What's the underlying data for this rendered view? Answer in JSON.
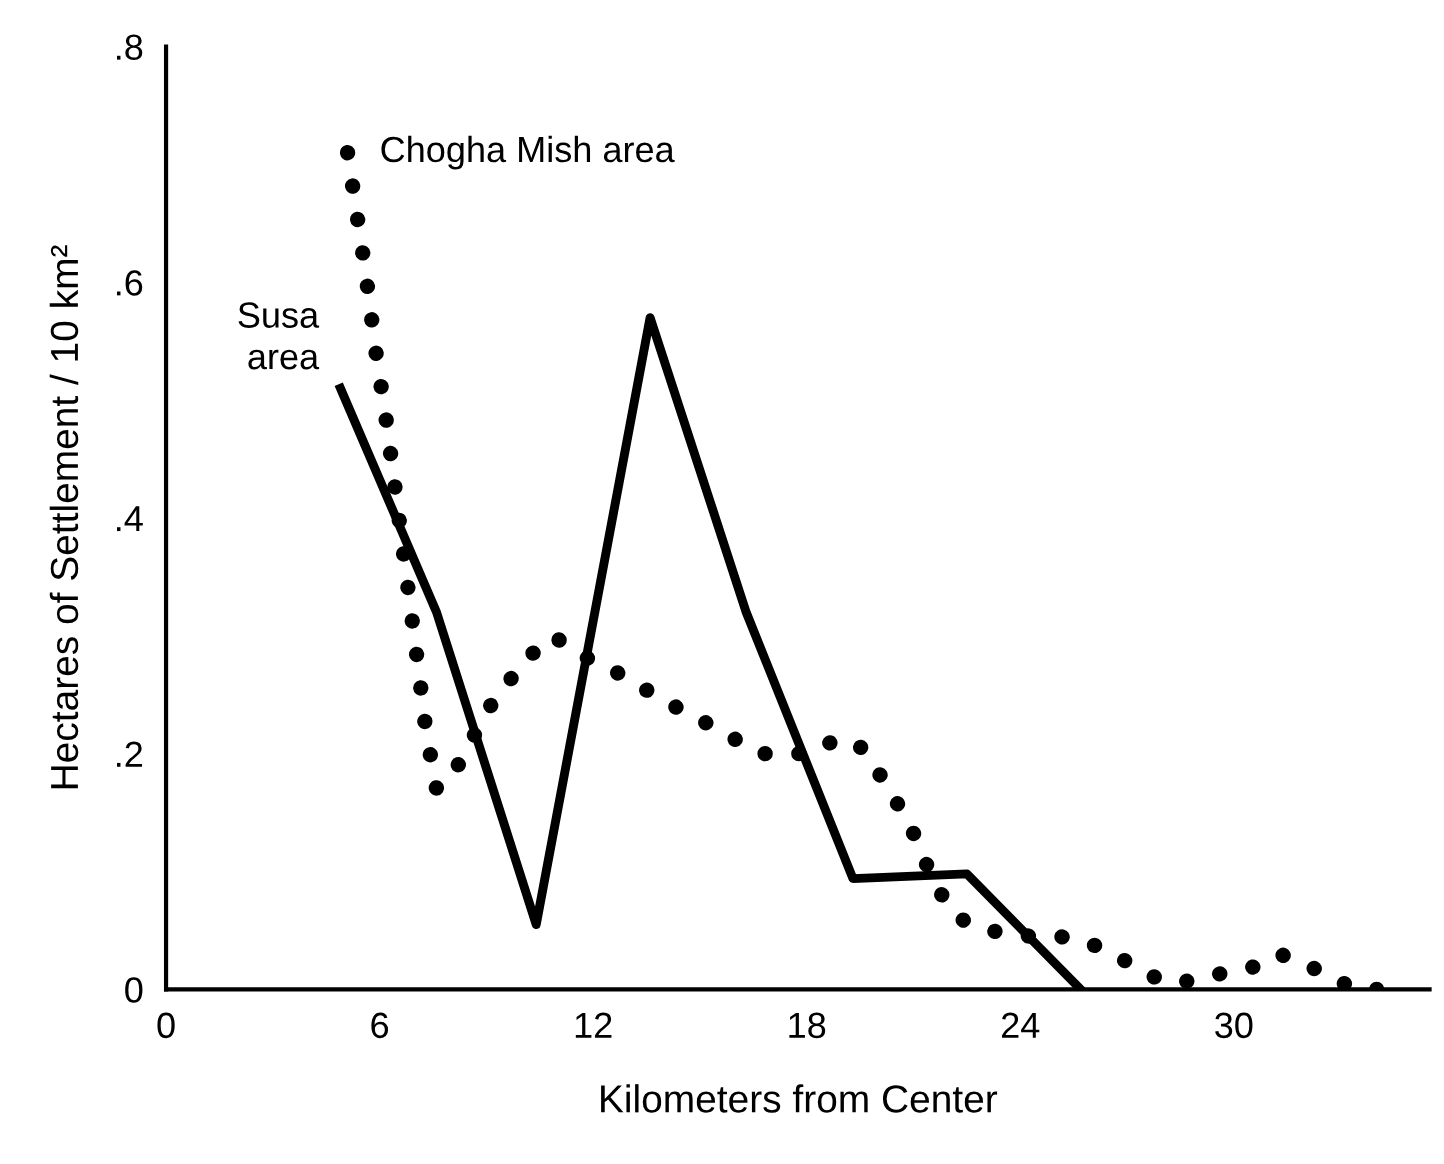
{
  "chart_data": {
    "type": "line",
    "xlabel": "Kilometers from Center",
    "ylabel": "Hectares of Settlement / 10 km²",
    "xlim": [
      0,
      35.5
    ],
    "ylim": [
      0,
      0.8
    ],
    "xticks": [
      0,
      6,
      12,
      18,
      24,
      30
    ],
    "yticks": [
      0,
      {
        "value": 0.2,
        "label": ".2"
      },
      {
        "value": 0.4,
        "label": ".4"
      },
      {
        "value": 0.6,
        "label": ".6"
      },
      {
        "value": 0.8,
        "label": ".8"
      }
    ],
    "grid": false,
    "legend": false,
    "marker": "none",
    "series": [
      {
        "name": "Chogha Mish area",
        "color": "#000000",
        "line_style": "dotted",
        "x": [
          5.1,
          5.4,
          5.6,
          5.9,
          6.2,
          6.5,
          6.8,
          7.1,
          7.3,
          7.6,
          8.2,
          9.1,
          9.6,
          10.1,
          10.5,
          10.9,
          11.3,
          11.9,
          12.6,
          13.2,
          13.7,
          14.3,
          14.9,
          15.6,
          16.1,
          16.7,
          17.4,
          18.1,
          18.7,
          19.4,
          19.9,
          20.5,
          20.9,
          21.3,
          21.8,
          22.3,
          23.1,
          24.3,
          25.1,
          25.9,
          26.6,
          27.2,
          27.8,
          28.4,
          29.1,
          29.9,
          30.7,
          31.3,
          32.1,
          32.8,
          33.4,
          34.0,
          34.5
        ],
        "values": [
          0.71,
          0.65,
          0.61,
          0.54,
          0.48,
          0.41,
          0.34,
          0.27,
          0.22,
          0.17,
          0.19,
          0.24,
          0.26,
          0.28,
          0.29,
          0.3,
          0.29,
          0.28,
          0.27,
          0.26,
          0.25,
          0.24,
          0.23,
          0.22,
          0.21,
          0.2,
          0.2,
          0.2,
          0.21,
          0.21,
          0.19,
          0.16,
          0.14,
          0.11,
          0.08,
          0.06,
          0.05,
          0.045,
          0.045,
          0.04,
          0.03,
          0.02,
          0.01,
          0.005,
          0.01,
          0.015,
          0.02,
          0.03,
          0.02,
          0.01,
          0.0,
          0.0,
          0.0
        ]
      },
      {
        "name": "Susa area",
        "color": "#000000",
        "line_style": "solid",
        "x": [
          4.9,
          7.6,
          10.4,
          13.6,
          16.3,
          19.3,
          22.5,
          25.7
        ],
        "values": [
          0.51,
          0.32,
          0.055,
          0.57,
          0.32,
          0.094,
          0.098,
          0.0
        ]
      }
    ]
  }
}
